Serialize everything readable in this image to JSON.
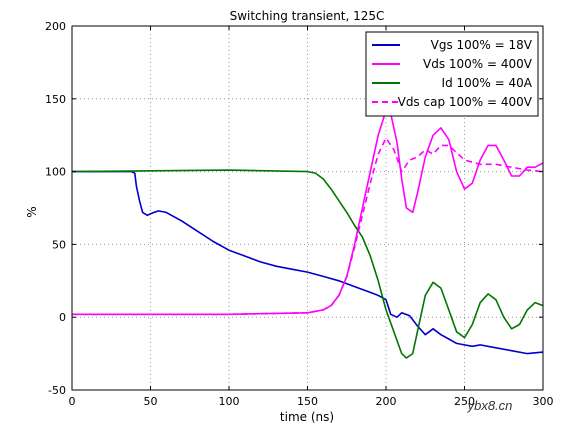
{
  "chart_data": {
    "type": "line",
    "title": "Switching transient, 125C",
    "xlabel": "time (ns)",
    "ylabel": "%",
    "xlim": [
      0,
      300
    ],
    "ylim": [
      -50,
      200
    ],
    "xticks": [
      0,
      50,
      100,
      150,
      200,
      250,
      300
    ],
    "yticks": [
      -50,
      0,
      50,
      100,
      150,
      200
    ],
    "grid": true,
    "legend_position": "top-right",
    "series": [
      {
        "name": "Vgs 100% = 18V",
        "color": "#0000cc",
        "style": "solid",
        "x": [
          0,
          38,
          40,
          41,
          43,
          45,
          48,
          50,
          55,
          60,
          70,
          80,
          90,
          100,
          110,
          120,
          130,
          140,
          150,
          160,
          170,
          180,
          190,
          195,
          200,
          203,
          207,
          210,
          215,
          220,
          225,
          230,
          235,
          240,
          245,
          250,
          255,
          260,
          270,
          280,
          290,
          300
        ],
        "y": [
          100,
          100,
          99,
          90,
          80,
          72,
          70,
          71,
          73,
          72,
          66,
          59,
          52,
          46,
          42,
          38,
          35,
          33,
          31,
          28,
          25,
          21,
          17,
          15,
          12,
          2,
          0,
          3,
          1,
          -6,
          -12,
          -8,
          -12,
          -15,
          -18,
          -19,
          -20,
          -19,
          -21,
          -23,
          -25,
          -24
        ]
      },
      {
        "name": "Vds 100% = 400V",
        "color": "#ff00ff",
        "style": "solid",
        "x": [
          0,
          100,
          150,
          160,
          165,
          170,
          175,
          180,
          185,
          190,
          195,
          200,
          203,
          207,
          210,
          213,
          217,
          220,
          225,
          230,
          235,
          240,
          245,
          250,
          255,
          260,
          265,
          270,
          275,
          280,
          285,
          290,
          295,
          300
        ],
        "y": [
          2,
          2,
          3,
          5,
          8,
          15,
          28,
          50,
          75,
          100,
          125,
          142,
          140,
          120,
          95,
          75,
          72,
          85,
          110,
          125,
          130,
          122,
          100,
          88,
          92,
          108,
          118,
          118,
          108,
          97,
          97,
          103,
          103,
          106
        ]
      },
      {
        "name": "Id 100% = 40A",
        "color": "#007700",
        "style": "solid",
        "x": [
          0,
          100,
          150,
          155,
          160,
          165,
          170,
          175,
          180,
          185,
          190,
          195,
          200,
          205,
          210,
          213,
          217,
          220,
          225,
          230,
          235,
          240,
          245,
          250,
          255,
          260,
          265,
          270,
          275,
          280,
          285,
          290,
          295,
          300
        ],
        "y": [
          100,
          101,
          100,
          99,
          95,
          88,
          80,
          72,
          63,
          55,
          42,
          25,
          5,
          -10,
          -25,
          -28,
          -25,
          -10,
          15,
          24,
          20,
          5,
          -10,
          -14,
          -5,
          10,
          16,
          12,
          0,
          -8,
          -5,
          5,
          10,
          8
        ]
      },
      {
        "name": "Vds cap 100% = 400V",
        "color": "#ff00ff",
        "style": "dashed",
        "x": [
          0,
          100,
          150,
          160,
          165,
          170,
          175,
          180,
          185,
          190,
          195,
          200,
          205,
          210,
          215,
          220,
          225,
          230,
          235,
          240,
          250,
          260,
          270,
          280,
          290,
          300
        ],
        "y": [
          2,
          2,
          3,
          5,
          8,
          15,
          28,
          48,
          70,
          92,
          112,
          123,
          115,
          100,
          108,
          110,
          115,
          112,
          118,
          118,
          108,
          105,
          105,
          103,
          101,
          100
        ]
      }
    ]
  },
  "watermark": "ybx8.cn"
}
